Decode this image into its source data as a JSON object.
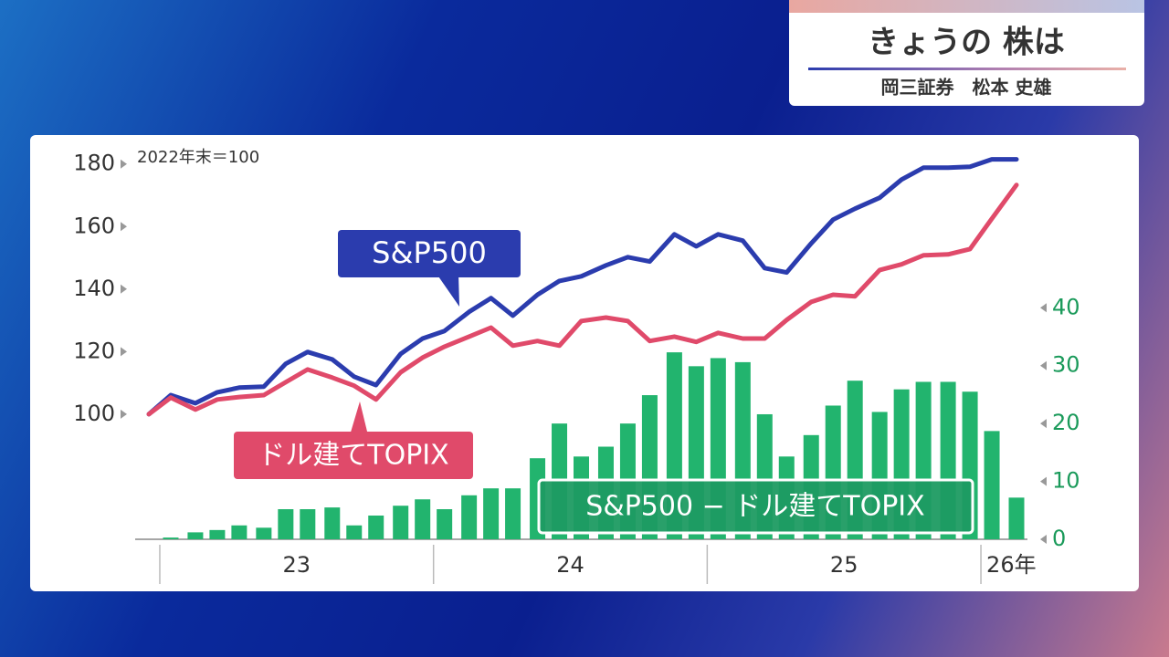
{
  "header": {
    "title": "きょうの 株は",
    "subtitle": "岡三証券　松本 史雄"
  },
  "chart_data": {
    "type": "line",
    "y_label": "2022年末＝100",
    "x": [
      22.96,
      23.04,
      23.13,
      23.21,
      23.29,
      23.38,
      23.46,
      23.54,
      23.63,
      23.71,
      23.79,
      23.88,
      23.96,
      24.04,
      24.13,
      24.21,
      24.29,
      24.38,
      24.46,
      24.54,
      24.63,
      24.71,
      24.79,
      24.88,
      24.96,
      25.04,
      25.13,
      25.21,
      25.29,
      25.38,
      25.46,
      25.54,
      25.63,
      25.71,
      25.79,
      25.88,
      25.96,
      26.04,
      26.13
    ],
    "xlim": [
      22.91,
      26.17
    ],
    "xticks": [
      {
        "value": 23,
        "label": "23"
      },
      {
        "value": 24,
        "label": "24"
      },
      {
        "value": 25,
        "label": "25"
      },
      {
        "value": 26,
        "label": "26年"
      }
    ],
    "ylim": [
      60,
      184
    ],
    "yticks": [
      100,
      120,
      140,
      160,
      180
    ],
    "y2lim": [
      0,
      67
    ],
    "y2ticks": [
      0,
      10,
      20,
      30,
      40
    ],
    "series": [
      {
        "name": "S&P500",
        "type": "line",
        "color": "#2b3cae",
        "values": [
          100,
          106.1,
          103.5,
          107.0,
          108.5,
          108.8,
          116.1,
          119.9,
          117.5,
          112.0,
          109.3,
          119.3,
          124.2,
          126.6,
          132.7,
          137.1,
          131.5,
          138.2,
          142.6,
          144.1,
          147.6,
          150.2,
          148.8,
          157.5,
          153.7,
          157.5,
          155.5,
          146.7,
          145.3,
          154.6,
          162.2,
          165.7,
          169.2,
          175.0,
          178.8,
          178.8,
          179.1,
          181.5,
          181.5
        ]
      },
      {
        "name": "ドル建てTOPIX",
        "type": "line",
        "color": "#e04a6a",
        "values": [
          100,
          105.3,
          101.5,
          104.7,
          105.5,
          106.1,
          110.2,
          114.3,
          111.7,
          109.1,
          104.7,
          113.4,
          118.1,
          121.6,
          124.8,
          127.7,
          121.9,
          123.4,
          121.9,
          129.8,
          130.9,
          129.8,
          123.4,
          124.8,
          123.1,
          126.0,
          124.2,
          124.2,
          130.1,
          135.9,
          138.2,
          137.7,
          146.1,
          147.9,
          150.8,
          151.1,
          152.8,
          162.5,
          173.3
        ]
      },
      {
        "name": "S&P500 − ドル建てTOPIX",
        "type": "bar",
        "axis": "y2",
        "color": "#22b46e",
        "values": [
          null,
          0.3,
          1.2,
          1.6,
          2.4,
          2.0,
          5.2,
          5.2,
          5.5,
          2.4,
          4.1,
          5.8,
          6.9,
          5.2,
          7.6,
          8.8,
          8.8,
          14.0,
          20.0,
          14.3,
          16.0,
          20.0,
          24.9,
          32.3,
          29.9,
          31.3,
          30.6,
          21.6,
          14.3,
          18.0,
          23.1,
          27.4,
          22.0,
          25.9,
          27.2,
          27.2,
          25.5,
          18.7,
          7.2
        ]
      }
    ]
  }
}
